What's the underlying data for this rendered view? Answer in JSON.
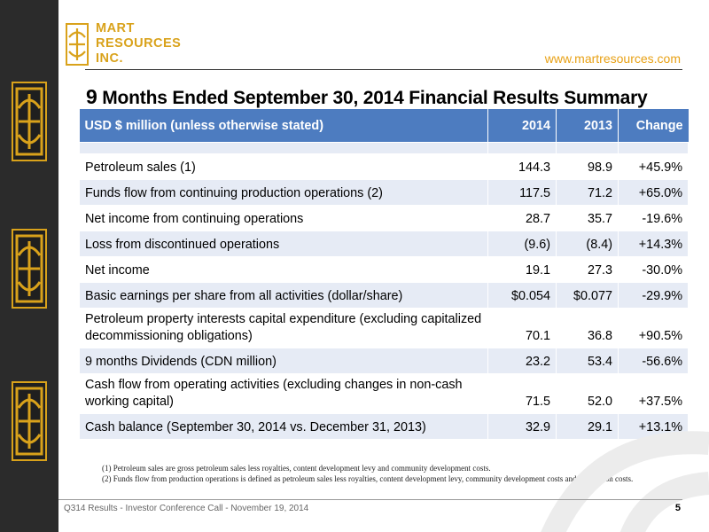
{
  "brand": {
    "logo_line1": "MART",
    "logo_line2": "RESOURCES",
    "logo_line3": "INC.",
    "website": "www.martresources.com",
    "accent": "#d9a21b"
  },
  "title_num": "9",
  "title_rest": "Months Ended September 30, 2014 Financial Results Summary",
  "table": {
    "headers": [
      "USD $ million (unless otherwise stated)",
      "2014",
      "2013",
      "Change"
    ],
    "header_color": "#4d7cc0",
    "rows": [
      {
        "label": "Petroleum sales (1)",
        "y2014": "144.3",
        "y2013": "98.9",
        "change": "+45.9%"
      },
      {
        "label": "Funds flow from continuing production operations (2)",
        "y2014": "117.5",
        "y2013": "71.2",
        "change": "+65.0%"
      },
      {
        "label": "Net income from continuing operations",
        "y2014": "28.7",
        "y2013": "35.7",
        "change": "-19.6%"
      },
      {
        "label": "Loss from discontinued operations",
        "y2014": "(9.6)",
        "y2013": "(8.4)",
        "change": "+14.3%"
      },
      {
        "label": "Net income",
        "y2014": "19.1",
        "y2013": "27.3",
        "change": "-30.0%"
      },
      {
        "label": "Basic earnings per share from all activities (dollar/share)",
        "y2014": "$0.054",
        "y2013": "$0.077",
        "change": "-29.9%"
      },
      {
        "label": "Petroleum property interests capital expenditure (excluding capitalized decommissioning obligations)",
        "y2014": "70.1",
        "y2013": "36.8",
        "change": "+90.5%"
      },
      {
        "label": "9 months Dividends (CDN million)",
        "y2014": "23.2",
        "y2013": "53.4",
        "change": "-56.6%"
      },
      {
        "label": "Cash flow from operating activities (excluding changes in non-cash working capital)",
        "y2014": "71.5",
        "y2013": "52.0",
        "change": "+37.5%"
      },
      {
        "label": "Cash balance (September 30, 2014 vs. December 31, 2013)",
        "y2014": "32.9",
        "y2013": "29.1",
        "change": "+13.1%"
      }
    ]
  },
  "footnotes": [
    "(1)   Petroleum sales are gross petroleum sales less royalties, content development levy and community development costs.",
    "(2)   Funds flow from production operations  is defined as petroleum sales less royalties, content development levy, community development costs and production costs."
  ],
  "footer": {
    "text": "Q314 Results - Investor Conference Call - November 19, 2014",
    "page": "5"
  }
}
